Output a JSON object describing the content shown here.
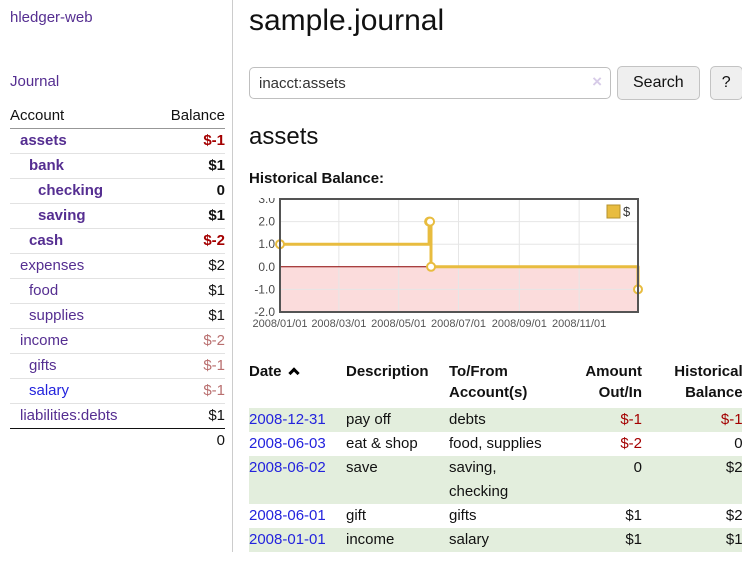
{
  "app": {
    "brand": "hledger-web"
  },
  "sidebar": {
    "nav": [
      {
        "label": "Journal"
      }
    ],
    "accounts_table": {
      "headers": [
        "Account",
        "Balance"
      ],
      "rows": [
        {
          "name": "assets",
          "balance": "$-1",
          "indent": 0,
          "bold": true,
          "name_style": "purple",
          "balance_style": "neg-strong"
        },
        {
          "name": "bank",
          "balance": "$1",
          "indent": 1,
          "bold": true,
          "name_style": "purple",
          "balance_style": ""
        },
        {
          "name": "checking",
          "balance": "0",
          "indent": 2,
          "bold": true,
          "name_style": "purple",
          "balance_style": ""
        },
        {
          "name": "saving",
          "balance": "$1",
          "indent": 2,
          "bold": true,
          "name_style": "purple",
          "balance_style": ""
        },
        {
          "name": "cash",
          "balance": "$-2",
          "indent": 1,
          "bold": true,
          "name_style": "purple",
          "balance_style": "neg-strong"
        },
        {
          "name": "expenses",
          "balance": "$2",
          "indent": 0,
          "bold": false,
          "name_style": "purple",
          "balance_style": ""
        },
        {
          "name": "food",
          "balance": "$1",
          "indent": 1,
          "bold": false,
          "name_style": "purple",
          "balance_style": ""
        },
        {
          "name": "supplies",
          "balance": "$1",
          "indent": 1,
          "bold": false,
          "name_style": "purple",
          "balance_style": ""
        },
        {
          "name": "income",
          "balance": "$-2",
          "indent": 0,
          "bold": false,
          "name_style": "purple",
          "balance_style": "neg-soft"
        },
        {
          "name": "gifts",
          "balance": "$-1",
          "indent": 1,
          "bold": false,
          "name_style": "purple",
          "balance_style": "neg-soft"
        },
        {
          "name": "salary",
          "balance": "$-1",
          "indent": 1,
          "bold": false,
          "name_style": "blue",
          "balance_style": "neg-soft"
        },
        {
          "name": "liabilities:debts",
          "balance": "$1",
          "indent": 0,
          "bold": false,
          "name_style": "purple",
          "balance_style": ""
        }
      ],
      "total": "0"
    }
  },
  "header": {
    "title": "sample.journal"
  },
  "search": {
    "value": "inacct:assets",
    "clear_icon": "×",
    "button_label": "Search",
    "help_label": "?"
  },
  "account_page": {
    "title": "assets",
    "chart_label": "Historical Balance:"
  },
  "chart_data": {
    "type": "line",
    "style": "step-after",
    "title": "Historical Balance",
    "series": [
      {
        "name": "$",
        "color": "#e8bc3f",
        "points": [
          {
            "date": "2008-01-01",
            "value": 1
          },
          {
            "date": "2008-06-01",
            "value": 2
          },
          {
            "date": "2008-06-02",
            "value": 2
          },
          {
            "date": "2008-06-03",
            "value": 0
          },
          {
            "date": "2008-12-31",
            "value": -1
          }
        ]
      }
    ],
    "x_range": [
      "2008-01-01",
      "2008-12-31"
    ],
    "x_ticks": [
      "2008/01/01",
      "2008/03/01",
      "2008/05/01",
      "2008/07/01",
      "2008/09/01",
      "2008/11/01"
    ],
    "y_ticks": [
      3,
      2,
      1,
      0,
      -1,
      -2
    ],
    "y_tick_labels": [
      "3.0",
      "2.0",
      "1.0",
      "0.0",
      "-1.0",
      "-2.0"
    ],
    "ylim": [
      -2,
      3
    ],
    "grid": true,
    "legend": {
      "label": "$",
      "position": "top-right"
    },
    "colors": {
      "border": "#545454",
      "gridline": "#e6e6e6",
      "zero_line": "#8b0000",
      "negative_region": "#fbdcdc",
      "marker_fill": "#ffffff"
    }
  },
  "register": {
    "headers": [
      {
        "label": "Date",
        "align": "left",
        "sorted": "ascending"
      },
      {
        "label": "Description",
        "align": "left"
      },
      {
        "label": "To/From Account(s)",
        "align": "left"
      },
      {
        "label": "Amount Out/In",
        "align": "right"
      },
      {
        "label": "Historical Balance",
        "align": "right"
      }
    ],
    "rows": [
      {
        "date": "2008-12-31",
        "description": "pay off",
        "accounts": "debts",
        "amount": "$-1",
        "balance": "$-1"
      },
      {
        "date": "2008-06-03",
        "description": "eat & shop",
        "accounts": "food, supplies",
        "amount": "$-2",
        "balance": "0"
      },
      {
        "date": "2008-06-02",
        "description": "save",
        "accounts": "saving, checking",
        "amount": "0",
        "balance": "$2"
      },
      {
        "date": "2008-06-01",
        "description": "gift",
        "accounts": "gifts",
        "amount": "$1",
        "balance": "$2"
      },
      {
        "date": "2008-01-01",
        "description": "income",
        "accounts": "salary",
        "amount": "$1",
        "balance": "$1"
      }
    ]
  }
}
